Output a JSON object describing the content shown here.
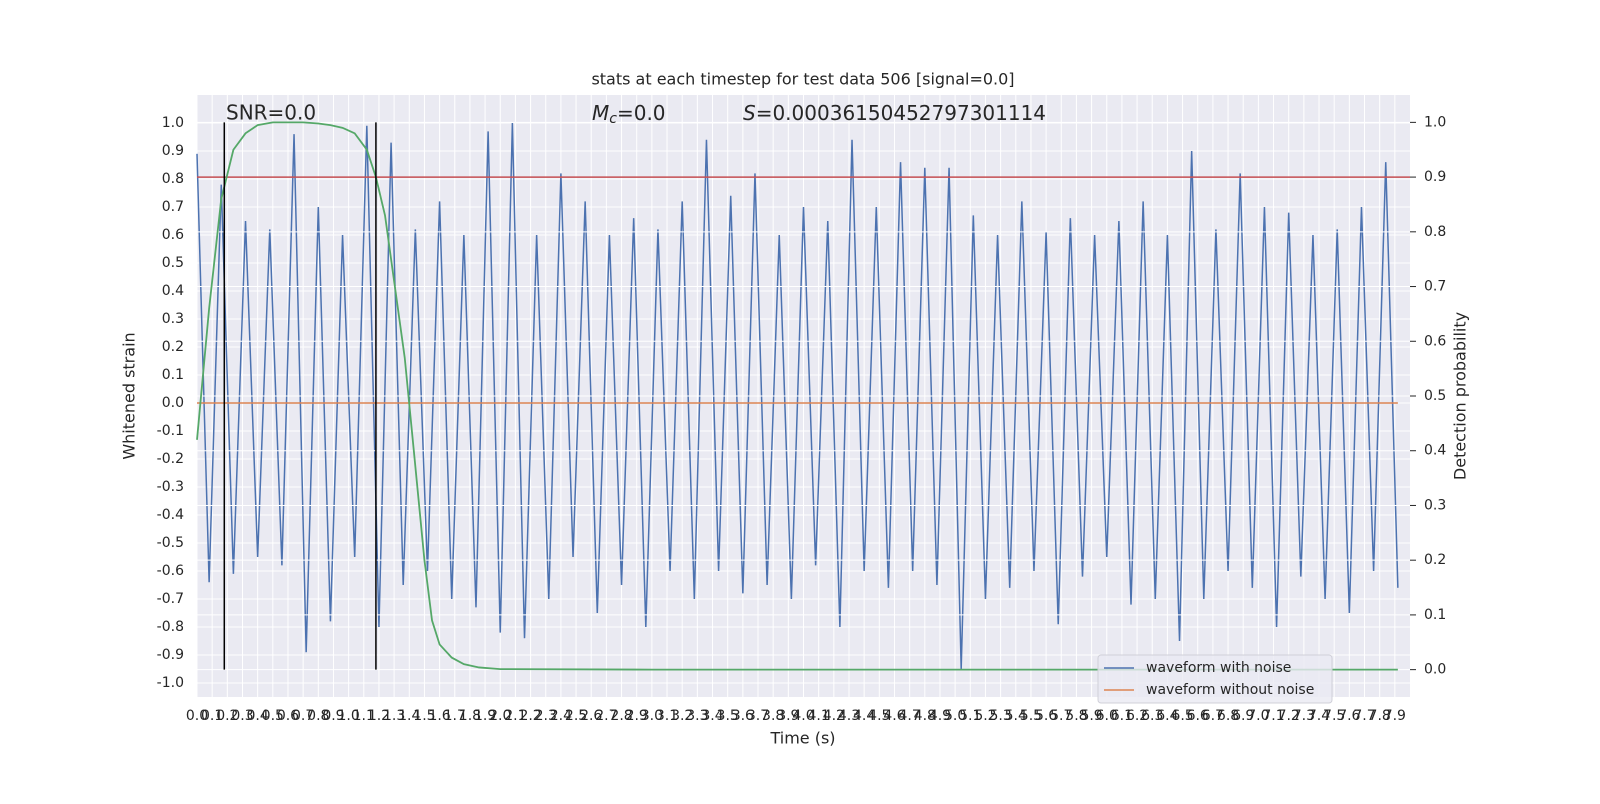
{
  "chart_data": {
    "type": "line",
    "title": "stats at each timestep for test data 506 [signal=0.0]",
    "xlabel": "Time (s)",
    "ylabel": "Whitened strain",
    "y2label": "Detection probability",
    "snr_text": "SNR=0.0",
    "mc_text": {
      "symbol": "M",
      "sub": "c",
      "text": "=0.0"
    },
    "s_text": {
      "symbol": "S",
      "text": "=0.00036150452797301114"
    },
    "xlim": [
      0,
      8
    ],
    "ylim": [
      -1.05,
      1.1
    ],
    "y2lim": [
      -0.05,
      1.05
    ],
    "grid": true,
    "legend": "lower right",
    "xticks": [
      {
        "value": 0,
        "label": "0.0"
      },
      0.1,
      0.2,
      0.3,
      0.4,
      0.5,
      0.6,
      0.7,
      0.8,
      0.9,
      {
        "value": 1,
        "label": "1.0"
      },
      1.1,
      1.2,
      1.3,
      1.4,
      1.5,
      1.6,
      1.7,
      1.8,
      1.9,
      {
        "value": 2,
        "label": "2.0"
      },
      2.1,
      2.2,
      2.3,
      2.4,
      2.5,
      2.6,
      2.7,
      2.8,
      2.9,
      {
        "value": 3,
        "label": "3.0"
      },
      3.1,
      3.2,
      3.3,
      3.4,
      3.5,
      3.6,
      3.7,
      3.8,
      3.9,
      {
        "value": 4,
        "label": "4.0"
      },
      4.1,
      4.2,
      4.3,
      4.4,
      4.5,
      4.6,
      4.7,
      4.8,
      4.9,
      {
        "value": 5,
        "label": "5.0"
      },
      5.1,
      5.2,
      5.3,
      5.4,
      5.5,
      5.6,
      5.7,
      5.8,
      5.9,
      {
        "value": 6,
        "label": "6.0"
      },
      6.1,
      6.2,
      6.3,
      6.4,
      6.5,
      6.6,
      6.7,
      6.8,
      6.9,
      {
        "value": 7,
        "label": "7.0"
      },
      7.1,
      7.2,
      7.3,
      7.4,
      7.5,
      7.6,
      7.7,
      7.8,
      7.9
    ],
    "yticks": [
      {
        "value": 1,
        "label": "1.0"
      },
      0.9,
      0.8,
      0.7,
      0.6,
      0.5,
      0.4,
      0.3,
      0.2,
      0.1,
      {
        "value": 0,
        "label": "0.0"
      },
      -0.1,
      -0.2,
      -0.3,
      -0.4,
      -0.5,
      -0.6,
      -0.7,
      -0.8,
      -0.9,
      {
        "value": -1,
        "label": "-1.0"
      }
    ],
    "y2ticks": [
      {
        "value": 0,
        "label": "0.0"
      },
      0.1,
      0.2,
      0.3,
      0.4,
      0.5,
      0.6,
      0.7,
      0.8,
      0.9,
      {
        "value": 1,
        "label": "1.0"
      }
    ],
    "series": [
      {
        "name": "waveform with noise",
        "color": "#4c72b0",
        "x": [
          0,
          0.08,
          0.16,
          0.24,
          0.32,
          0.4,
          0.48,
          0.56,
          0.64,
          0.72,
          0.8,
          0.88,
          0.96,
          1.04,
          1.12,
          1.2,
          1.28,
          1.36,
          1.44,
          1.52,
          1.6,
          1.68,
          1.76,
          1.84,
          1.92,
          2,
          2.08,
          2.16,
          2.24,
          2.32,
          2.4,
          2.48,
          2.56,
          2.64,
          2.72,
          2.8,
          2.88,
          2.96,
          3.04,
          3.12,
          3.2,
          3.28,
          3.36,
          3.44,
          3.52,
          3.6,
          3.68,
          3.76,
          3.84,
          3.92,
          4,
          4.08,
          4.16,
          4.24,
          4.32,
          4.4,
          4.48,
          4.56,
          4.64,
          4.72,
          4.8,
          4.88,
          4.96,
          5.04,
          5.12,
          5.2,
          5.28,
          5.36,
          5.44,
          5.52,
          5.6,
          5.68,
          5.76,
          5.84,
          5.92,
          6,
          6.08,
          6.16,
          6.24,
          6.32,
          6.4,
          6.48,
          6.56,
          6.64,
          6.72,
          6.8,
          6.88,
          6.96,
          7.04,
          7.12,
          7.2,
          7.28,
          7.36,
          7.44,
          7.52,
          7.6,
          7.68,
          7.76,
          7.84,
          7.92
        ],
        "values": [
          0.89,
          -0.64,
          0.78,
          -0.61,
          0.65,
          -0.55,
          0.62,
          -0.58,
          0.96,
          -0.89,
          0.7,
          -0.78,
          0.6,
          -0.55,
          0.99,
          -0.8,
          0.93,
          -0.65,
          0.62,
          -0.6,
          0.72,
          -0.7,
          0.6,
          -0.73,
          0.97,
          -0.82,
          1.0,
          -0.84,
          0.6,
          -0.7,
          0.82,
          -0.55,
          0.72,
          -0.75,
          0.6,
          -0.65,
          0.66,
          -0.8,
          0.62,
          -0.6,
          0.72,
          -0.7,
          0.94,
          -0.6,
          0.74,
          -0.68,
          0.82,
          -0.65,
          0.6,
          -0.7,
          0.7,
          -0.58,
          0.65,
          -0.8,
          0.94,
          -0.6,
          0.7,
          -0.66,
          0.86,
          -0.6,
          0.84,
          -0.65,
          0.84,
          -0.95,
          0.67,
          -0.7,
          0.6,
          -0.66,
          0.72,
          -0.6,
          0.61,
          -0.79,
          0.66,
          -0.62,
          0.6,
          -0.55,
          0.65,
          -0.72,
          0.72,
          -0.7,
          0.6,
          -0.85,
          0.9,
          -0.7,
          0.62,
          -0.6,
          0.82,
          -0.66,
          0.7,
          -0.8,
          0.68,
          -0.62,
          0.6,
          -0.7,
          0.62,
          -0.75,
          0.7,
          -0.6,
          0.86,
          -0.66
        ]
      },
      {
        "name": "waveform without noise",
        "color": "#dd8452",
        "x": [
          0,
          7.92
        ],
        "values": [
          0,
          0
        ]
      }
    ],
    "probability": {
      "color": "#55a868",
      "axis": "y2",
      "x": [
        0,
        0.08,
        0.16,
        0.24,
        0.32,
        0.4,
        0.5,
        0.6,
        0.7,
        0.8,
        0.88,
        0.96,
        1.04,
        1.12,
        1.18,
        1.24,
        1.3,
        1.37,
        1.43,
        1.5,
        1.55,
        1.6,
        1.68,
        1.76,
        1.86,
        2,
        3,
        4,
        5,
        6,
        7,
        7.92
      ],
      "values": [
        0.42,
        0.66,
        0.86,
        0.95,
        0.98,
        0.995,
        1,
        1,
        1,
        0.998,
        0.995,
        0.99,
        0.98,
        0.95,
        0.9,
        0.83,
        0.71,
        0.57,
        0.4,
        0.2,
        0.09,
        0.046,
        0.022,
        0.01,
        0.004,
        0.001,
        0,
        0,
        0,
        0,
        0,
        0
      ]
    },
    "threshold": {
      "value": 0.9,
      "axis": "y2",
      "color": "#c44e52"
    },
    "vlines": {
      "x": [
        0.18,
        1.18
      ],
      "y2min": 0,
      "y2max": 1,
      "color": "#000000"
    }
  }
}
